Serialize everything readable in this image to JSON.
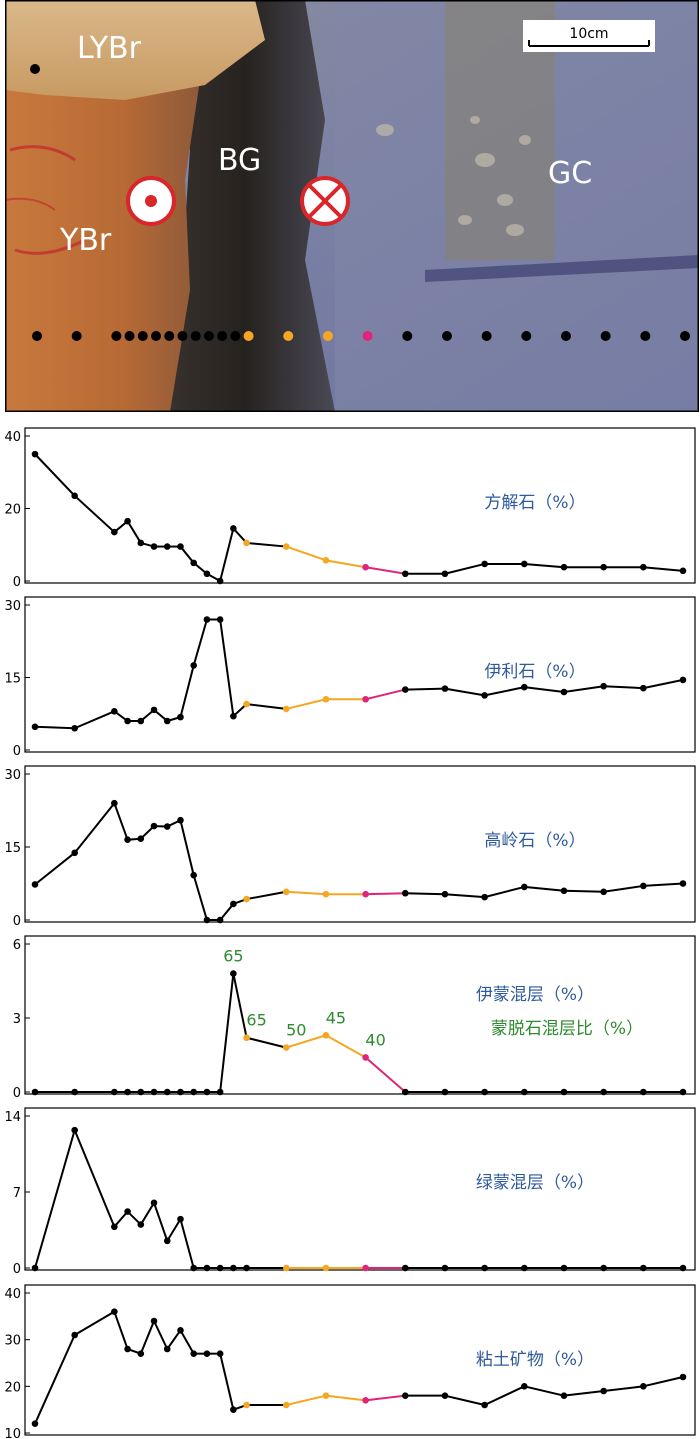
{
  "photo": {
    "labels": {
      "lybr": "LYBr",
      "ybr": "YBr",
      "bg": "BG",
      "gc": "GC"
    },
    "scale_bar_label": "10cm",
    "colors": {
      "black_dot": "#000000",
      "orange_dot": "#F5A623",
      "magenta_dot": "#E0247A",
      "marker_red": "#D9262B"
    },
    "symbols": [
      "out-of-page-icon",
      "into-page-icon"
    ]
  },
  "colors": {
    "black_segment": "#000000",
    "orange_segment": "#F5A623",
    "magenta_segment": "#E0247A",
    "title_blue": "#2F5A9E",
    "annotation_green": "#2E8B2E"
  },
  "chart_data": [
    {
      "type": "line",
      "title": "方解石（%）",
      "xlabel": "",
      "ylabel": "",
      "yticks": [
        "0",
        "20",
        "40"
      ],
      "ylim": [
        0,
        40
      ],
      "x": [
        1,
        4,
        7,
        8,
        9,
        10,
        11,
        12,
        13,
        14,
        15,
        16,
        17,
        20,
        23,
        26,
        29,
        32,
        35,
        38,
        41,
        44,
        47,
        50
      ],
      "values": [
        35,
        23.5,
        13.5,
        16.5,
        10.5,
        9.5,
        9.5,
        9.5,
        5,
        2,
        0,
        14.5,
        10.5,
        9.5,
        5.7,
        3.8,
        2,
        2,
        4.7,
        4.7,
        3.8,
        3.8,
        3.8,
        2.8
      ]
    },
    {
      "type": "line",
      "title": "伊利石（%）",
      "xlabel": "",
      "ylabel": "",
      "yticks": [
        "0",
        "15",
        "30"
      ],
      "ylim": [
        0,
        30
      ],
      "x": [
        1,
        4,
        7,
        8,
        9,
        10,
        11,
        12,
        13,
        14,
        15,
        16,
        17,
        20,
        23,
        26,
        29,
        32,
        35,
        38,
        41,
        44,
        47,
        50
      ],
      "values": [
        4.8,
        4.5,
        8,
        6,
        6,
        8.3,
        6,
        6.8,
        17.5,
        27,
        27,
        7,
        9.5,
        8.5,
        10.5,
        10.5,
        12.5,
        12.7,
        11.3,
        13,
        12,
        13.2,
        12.8,
        14.5
      ]
    },
    {
      "type": "line",
      "title": "高岭石（%）",
      "xlabel": "",
      "ylabel": "",
      "yticks": [
        "0",
        "15",
        "30"
      ],
      "ylim": [
        0,
        30
      ],
      "x": [
        1,
        4,
        7,
        8,
        9,
        10,
        11,
        12,
        13,
        14,
        15,
        16,
        17,
        20,
        23,
        26,
        29,
        32,
        35,
        38,
        41,
        44,
        47,
        50
      ],
      "values": [
        7.3,
        13.8,
        24,
        16.5,
        16.7,
        19.3,
        19.2,
        20.5,
        9.2,
        0,
        0,
        3.3,
        4.3,
        5.8,
        5.3,
        5.3,
        5.5,
        5.3,
        4.7,
        6.8,
        6,
        5.8,
        7,
        7.5
      ]
    },
    {
      "type": "line",
      "title": "伊蒙混层（%）",
      "subtitle": "蒙脱石混层比（%）",
      "xlabel": "",
      "ylabel": "",
      "yticks": [
        "0",
        "3",
        "6"
      ],
      "ylim": [
        0,
        6
      ],
      "x": [
        1,
        4,
        7,
        8,
        9,
        10,
        11,
        12,
        13,
        14,
        15,
        16,
        17,
        20,
        23,
        26,
        29,
        32,
        35,
        38,
        41,
        44,
        47,
        50
      ],
      "values": [
        0,
        0,
        0,
        0,
        0,
        0,
        0,
        0,
        0,
        0,
        0,
        4.8,
        2.2,
        1.8,
        2.3,
        1.4,
        0,
        0,
        0,
        0,
        0,
        0,
        0,
        0
      ],
      "annotations": [
        {
          "x": 16,
          "text": "65"
        },
        {
          "x": 17,
          "text": "65"
        },
        {
          "x": 20,
          "text": "50"
        },
        {
          "x": 23,
          "text": "45"
        },
        {
          "x": 26,
          "text": "40"
        }
      ]
    },
    {
      "type": "line",
      "title": "绿蒙混层（%）",
      "xlabel": "",
      "ylabel": "",
      "yticks": [
        "0",
        "7",
        "14"
      ],
      "ylim": [
        0,
        14
      ],
      "x": [
        1,
        4,
        7,
        8,
        9,
        10,
        11,
        12,
        13,
        14,
        15,
        16,
        17,
        20,
        23,
        26,
        29,
        32,
        35,
        38,
        41,
        44,
        47,
        50
      ],
      "values": [
        0,
        12.7,
        3.8,
        5.2,
        4,
        6,
        2.5,
        4.5,
        0,
        0,
        0,
        0,
        0,
        0,
        0,
        0,
        0,
        0,
        0,
        0,
        0,
        0,
        0,
        0
      ]
    },
    {
      "type": "line",
      "title": "粘土矿物（%）",
      "xlabel": "",
      "ylabel": "",
      "yticks": [
        "10",
        "20",
        "30",
        "40"
      ],
      "ylim": [
        10,
        40
      ],
      "x": [
        1,
        4,
        7,
        8,
        9,
        10,
        11,
        12,
        13,
        14,
        15,
        16,
        17,
        20,
        23,
        26,
        29,
        32,
        35,
        38,
        41,
        44,
        47,
        50
      ],
      "values": [
        12,
        31,
        36,
        28,
        27,
        34,
        28,
        32,
        27,
        27,
        27,
        15,
        16,
        16,
        18,
        17,
        18,
        18,
        16,
        20,
        18,
        19,
        20,
        22
      ]
    }
  ]
}
